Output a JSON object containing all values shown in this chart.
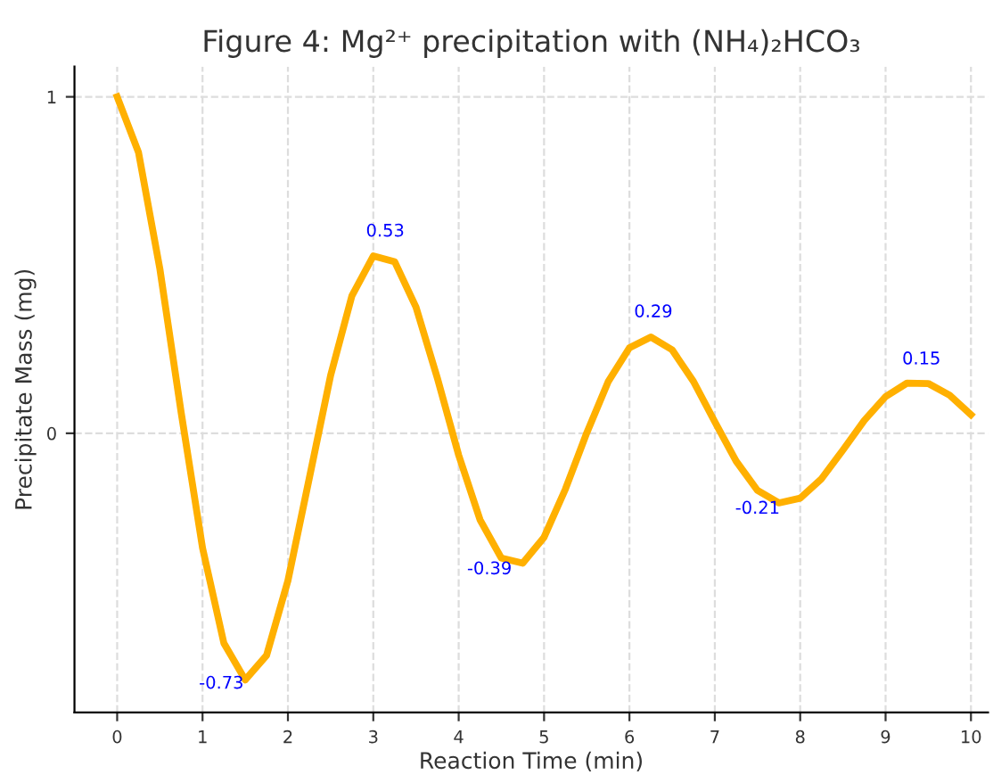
{
  "chart_data": {
    "type": "line",
    "title": "Figure 4: Mg²⁺ precipitation with (NH₄)₂HCO₃",
    "xlabel": "Reaction Time (min)",
    "ylabel": "Precipitate Mass (mg)",
    "x": [
      0,
      0.25,
      0.5,
      0.75,
      1.0,
      1.25,
      1.5,
      1.75,
      2.0,
      2.25,
      2.5,
      2.75,
      3.0,
      3.25,
      3.5,
      3.75,
      4.0,
      4.25,
      4.5,
      4.75,
      5.0,
      5.25,
      5.5,
      5.75,
      6.0,
      6.25,
      6.5,
      6.75,
      7.0,
      7.25,
      7.5,
      7.75,
      8.0,
      8.25,
      8.5,
      8.75,
      9.0,
      9.25,
      9.5,
      9.75,
      10
    ],
    "series": [
      {
        "color": "#ffb000",
        "values": [
          1,
          0.835,
          0.489,
          0.061,
          -0.341,
          -0.624,
          -0.733,
          -0.66,
          -0.438,
          -0.134,
          0.172,
          0.409,
          0.527,
          0.51,
          0.375,
          0.164,
          -0.065,
          -0.257,
          -0.371,
          -0.386,
          -0.309,
          -0.166,
          0.001,
          0.153,
          0.254,
          0.286,
          0.248,
          0.154,
          0.034,
          -0.083,
          -0.17,
          -0.207,
          -0.193,
          -0.135,
          -0.05,
          0.038,
          0.109,
          0.149,
          0.148,
          0.113,
          0.055
        ]
      }
    ],
    "annotations": [
      {
        "text": "-0.73",
        "x": 1.57,
        "y": -0.73
      },
      {
        "text": "0.53",
        "x": 3.14,
        "y": 0.53
      },
      {
        "text": "-0.39",
        "x": 4.71,
        "y": -0.39
      },
      {
        "text": "0.29",
        "x": 6.28,
        "y": 0.29
      },
      {
        "text": "-0.21",
        "x": 7.85,
        "y": -0.21
      },
      {
        "text": "0.15",
        "x": 9.42,
        "y": 0.15
      }
    ],
    "xlim": [
      -0.5,
      10.2
    ],
    "ylim": [
      -0.83,
      1.09
    ],
    "xticks": [
      0,
      1,
      2,
      3,
      4,
      5,
      6,
      7,
      8,
      9,
      10
    ],
    "yticks": [
      0,
      1
    ],
    "grid": true,
    "line_style": "solid",
    "marker": "none"
  }
}
